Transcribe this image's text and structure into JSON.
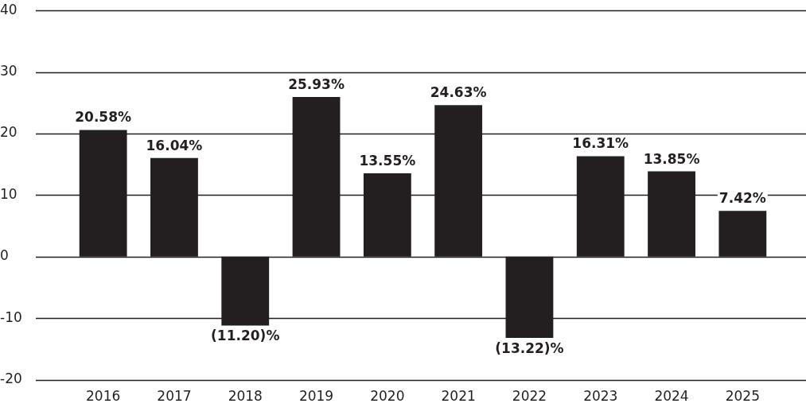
{
  "chart_data": {
    "type": "bar",
    "categories": [
      "2016",
      "2017",
      "2018",
      "2019",
      "2020",
      "2021",
      "2022",
      "2023",
      "2024",
      "2025"
    ],
    "values": [
      20.58,
      16.04,
      -11.2,
      25.93,
      13.55,
      24.63,
      -13.22,
      16.31,
      13.85,
      7.42
    ],
    "value_labels": [
      "20.58%",
      "16.04%",
      "(11.20)%",
      "25.93%",
      "13.55%",
      "24.63%",
      "(13.22)%",
      "16.31%",
      "13.85%",
      "7.42%"
    ],
    "color": "#231f20",
    "ylim": [
      -20,
      40
    ],
    "yticks": [
      -20,
      -10,
      0,
      10,
      20,
      30,
      40
    ],
    "grid": "y"
  }
}
